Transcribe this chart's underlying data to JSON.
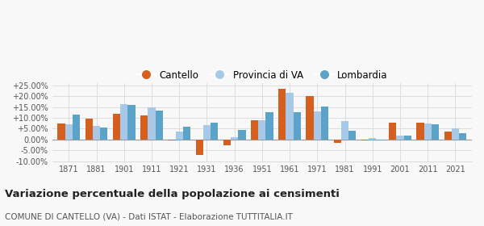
{
  "years": [
    1871,
    1881,
    1901,
    1911,
    1921,
    1931,
    1936,
    1951,
    1961,
    1971,
    1981,
    1991,
    2001,
    2011,
    2021
  ],
  "cantello": [
    7.5,
    9.8,
    12.0,
    11.0,
    -0.5,
    -7.2,
    -2.5,
    8.8,
    23.5,
    20.0,
    -1.5,
    -0.5,
    7.8,
    7.8,
    3.5
  ],
  "provincia_va": [
    7.0,
    6.2,
    16.5,
    14.8,
    3.5,
    6.8,
    1.0,
    9.0,
    21.5,
    13.0,
    8.7,
    0.8,
    1.8,
    7.5,
    5.0
  ],
  "lombardia": [
    11.5,
    5.5,
    15.8,
    13.2,
    6.0,
    7.8,
    4.3,
    12.5,
    12.8,
    15.3,
    4.0,
    -0.3,
    1.8,
    7.2,
    2.8
  ],
  "color_cantello": "#d45f1e",
  "color_provincia": "#a8c8e8",
  "color_lombardia": "#5ba3c9",
  "ylim": [
    -10,
    26
  ],
  "yticks": [
    -10,
    -5,
    0,
    5,
    10,
    15,
    20,
    25
  ],
  "title": "Variazione percentuale della popolazione ai censimenti",
  "subtitle": "COMUNE DI CANTELLO (VA) - Dati ISTAT - Elaborazione TUTTITALIA.IT",
  "legend_labels": [
    "Cantello",
    "Provincia di VA",
    "Lombardia"
  ],
  "background_color": "#f8f8f8",
  "grid_color": "#dddddd"
}
